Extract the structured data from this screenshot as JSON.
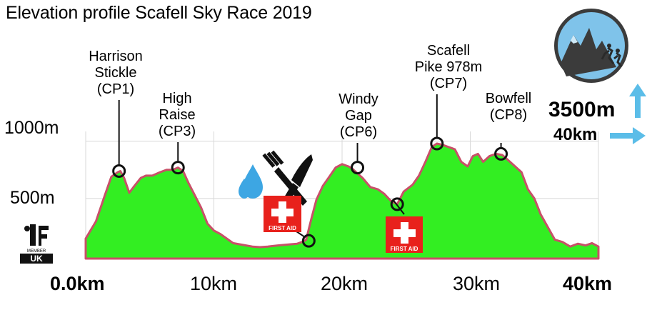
{
  "header": {
    "title": "Elevation profile Scafell Sky Race 2019"
  },
  "stats": {
    "elevation_gain": "3500m",
    "distance": "40km"
  },
  "colors": {
    "fill": "#33ee22",
    "outline": "#c85068",
    "grid": "#d8d8d8",
    "arrow": "#5bbde8",
    "first_aid": "#e8211c"
  },
  "icons": {
    "logo": "mountain-runner-logo",
    "member": "itra-member-uk-badge",
    "refreshment": "water-drops-and-cutlery-icon",
    "first_aid": "first-aid-icon",
    "up_arrow": "up-arrow-icon",
    "right_arrow": "right-arrow-icon"
  },
  "first_aid_label": "FIRST AID",
  "member_badge": {
    "top": "MEMBER",
    "bottom": "UK"
  },
  "chart_data": {
    "type": "area",
    "title": "Elevation profile Scafell Sky Race 2019",
    "xlabel": "",
    "ylabel": "",
    "xlim": [
      0,
      40
    ],
    "ylim": [
      0,
      1000
    ],
    "x_ticks": [
      {
        "value": 0,
        "label": "0.0km"
      },
      {
        "value": 10,
        "label": "10km"
      },
      {
        "value": 20,
        "label": "20km"
      },
      {
        "value": 30,
        "label": "30km"
      },
      {
        "value": 40,
        "label": "40km"
      }
    ],
    "y_ticks": [
      {
        "value": 500,
        "label": "500m"
      },
      {
        "value": 1000,
        "label": "1000m"
      }
    ],
    "grid": true,
    "series": [
      {
        "x": [
          0,
          0.8,
          1.5,
          2.0,
          2.5,
          2.7,
          3.0,
          3.4,
          3.8,
          4.3,
          4.7,
          5.2,
          5.8,
          6.3,
          6.8,
          7.2,
          7.6,
          8.0,
          8.5,
          9.0,
          9.5,
          10.0,
          10.5,
          11.0,
          11.5,
          12.0,
          12.5,
          13.0,
          13.6,
          14.2,
          15.0,
          16.0,
          16.5,
          17.0,
          17.2,
          17.6,
          18.0,
          18.5,
          19.0,
          19.5,
          20.0,
          20.5,
          20.8,
          21.2,
          21.6,
          22.2,
          22.8,
          23.3,
          23.8,
          24.3,
          24.8,
          25.5,
          26.0,
          26.5,
          27.0,
          27.4,
          27.8,
          28.3,
          28.8,
          29.3,
          29.8,
          30.2,
          30.6,
          31.0,
          31.5,
          32.0,
          32.5,
          33.0,
          33.5,
          34.0,
          34.5,
          35.0,
          35.5,
          36.0,
          36.6,
          37.2,
          37.8,
          38.4,
          39.0,
          39.5,
          40.0
        ],
        "values": [
          150,
          300,
          530,
          690,
          730,
          740,
          680,
          550,
          610,
          680,
          700,
          700,
          730,
          750,
          750,
          770,
          740,
          640,
          530,
          420,
          280,
          220,
          190,
          150,
          110,
          100,
          90,
          80,
          75,
          80,
          90,
          100,
          105,
          125,
          140,
          320,
          490,
          610,
          690,
          770,
          800,
          780,
          760,
          720,
          680,
          600,
          580,
          540,
          480,
          450,
          560,
          620,
          700,
          820,
          950,
          980,
          970,
          950,
          930,
          820,
          780,
          870,
          890,
          820,
          870,
          890,
          880,
          830,
          780,
          730,
          580,
          500,
          360,
          260,
          140,
          120,
          80,
          105,
          90,
          110,
          80
        ]
      }
    ],
    "annotations": [
      {
        "x": 2.6,
        "y": 740,
        "label": "Harrison\nStickle\n(CP1)"
      },
      {
        "x": 7.2,
        "y": 770,
        "label": "High\nRaise\n(CP3)"
      },
      {
        "x": 17.4,
        "y": 130,
        "label": ""
      },
      {
        "x": 21.2,
        "y": 770,
        "label": "Windy\nGap\n(CP6)"
      },
      {
        "x": 24.3,
        "y": 450,
        "label": ""
      },
      {
        "x": 27.4,
        "y": 980,
        "label": "Scafell\nPike 978m\n(CP7)"
      },
      {
        "x": 32.4,
        "y": 890,
        "label": "Bowfell\n(CP8)"
      }
    ]
  }
}
